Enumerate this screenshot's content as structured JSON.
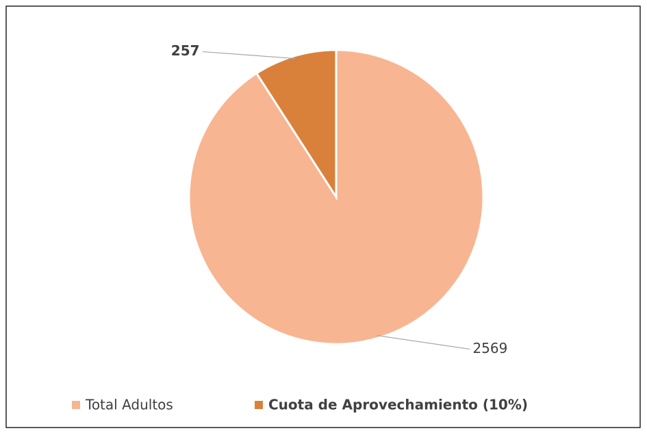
{
  "chart_data": {
    "type": "pie",
    "categories": [
      "Total Adultos",
      "Cuota de Aprovechamiento (10%)"
    ],
    "values": [
      2569,
      257
    ],
    "colors": [
      "#F8B592",
      "#D9813B"
    ],
    "legend": "bottom"
  }
}
